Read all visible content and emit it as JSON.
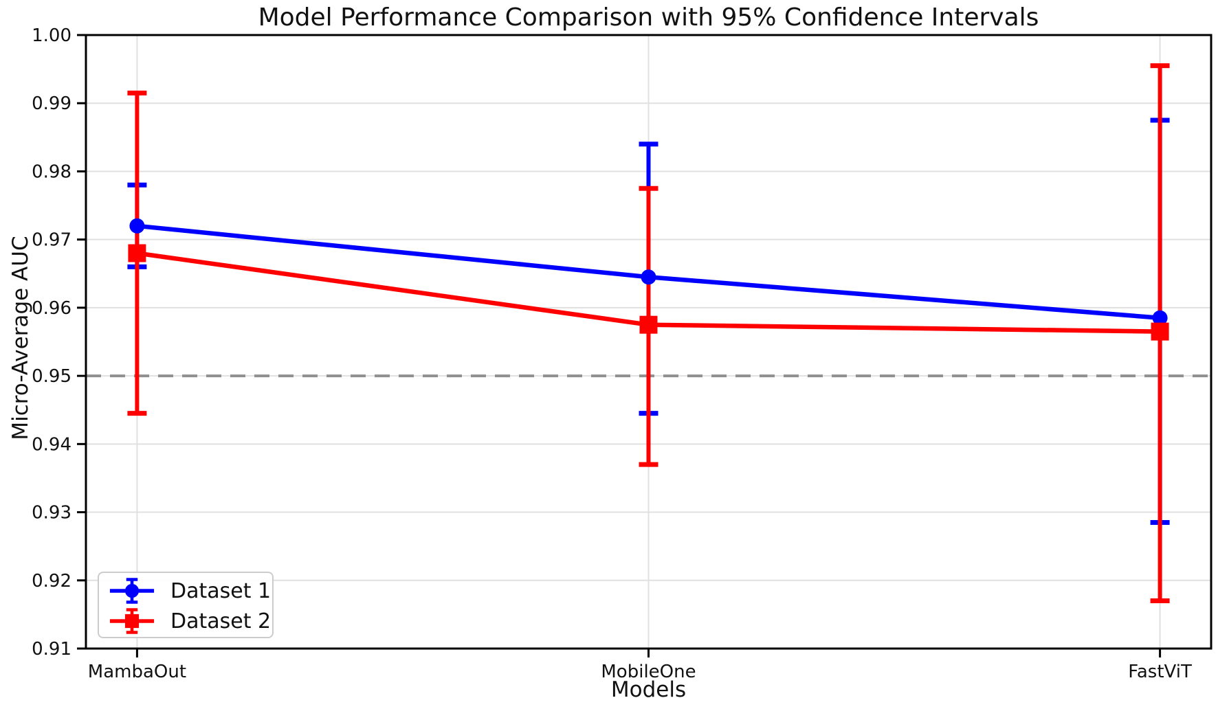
{
  "chart_data": {
    "type": "line",
    "title": "Model Performance Comparison with 95% Confidence Intervals",
    "xlabel": "Models",
    "ylabel": "Micro-Average AUC",
    "categories": [
      "MambaOut",
      "MobileOne",
      "FastViT"
    ],
    "ylim": [
      0.91,
      1.0
    ],
    "ytick_labels": [
      "1.00",
      "0.99",
      "0.98",
      "0.97",
      "0.96",
      "0.95",
      "0.94",
      "0.93",
      "0.92",
      "0.91"
    ],
    "grid": true,
    "gridline_color": "#e0e0e0",
    "reference_line": {
      "y": 0.95,
      "style": "dashed",
      "color": "#909090"
    },
    "legend": {
      "position": "lower left",
      "entries": [
        "Dataset 1",
        "Dataset 2"
      ]
    },
    "series": [
      {
        "name": "Dataset 1",
        "color": "#0000ff",
        "marker": "circle",
        "values": [
          0.972,
          0.9645,
          0.9585
        ],
        "ci_low": [
          0.966,
          0.9445,
          0.9285
        ],
        "ci_high": [
          0.978,
          0.984,
          0.9875
        ]
      },
      {
        "name": "Dataset 2",
        "color": "#ff0000",
        "marker": "square",
        "values": [
          0.968,
          0.9575,
          0.9565
        ],
        "ci_low": [
          0.9445,
          0.937,
          0.917
        ],
        "ci_high": [
          0.9915,
          0.9775,
          0.9955
        ]
      }
    ]
  }
}
